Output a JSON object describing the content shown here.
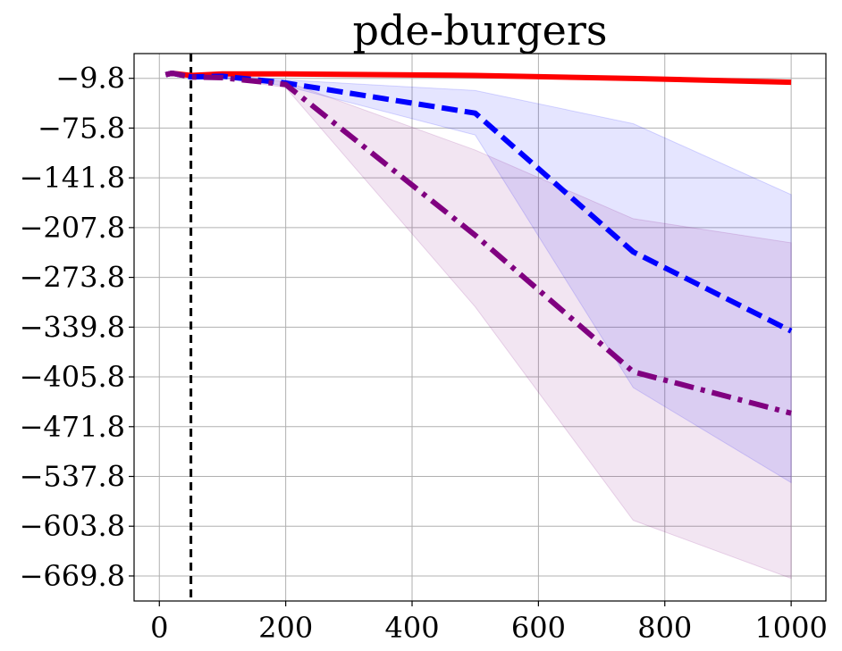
{
  "chart_data": {
    "type": "line",
    "title": "pde-burgers",
    "xlabel": "",
    "ylabel": "",
    "xlim": [
      -40,
      1055
    ],
    "ylim": [
      -703,
      23
    ],
    "x_ticks": [
      0,
      200,
      400,
      600,
      800,
      1000
    ],
    "x_tick_labels": [
      "0",
      "200",
      "400",
      "600",
      "800",
      "1000"
    ],
    "y_ticks": [
      -9.8,
      -75.8,
      -141.8,
      -207.8,
      -273.8,
      -339.8,
      -405.8,
      -471.8,
      -537.8,
      -603.8,
      -669.8
    ],
    "y_tick_labels": [
      "−9.8",
      "−75.8",
      "−141.8",
      "−207.8",
      "−273.8",
      "−339.8",
      "−405.8",
      "−471.8",
      "−537.8",
      "−603.8",
      "−669.8"
    ],
    "grid": true,
    "vline": {
      "x": 50,
      "color": "#000000",
      "style": "dashed"
    },
    "series": [
      {
        "color": "#ff0000",
        "style": "solid",
        "x": [
          10,
          20,
          50,
          100,
          200,
          500,
          750,
          1000
        ],
        "y": [
          -5,
          -3,
          -6,
          -4,
          -4,
          -6,
          -10,
          -15
        ],
        "band_lower": [
          -5,
          -3,
          -6,
          -4,
          -4,
          -6,
          -10,
          -15
        ],
        "band_upper": [
          -5,
          -3,
          -6,
          -4,
          -4,
          -6,
          -10,
          -15
        ]
      },
      {
        "color": "#0000ff",
        "style": "dashed",
        "x": [
          10,
          20,
          50,
          100,
          200,
          500,
          750,
          1000
        ],
        "y": [
          -5,
          -3,
          -8,
          -7,
          -16,
          -56,
          -240,
          -345
        ],
        "band_lower": [
          -5,
          -3,
          -8,
          -9,
          -20,
          -85,
          -420,
          -546
        ],
        "band_upper": [
          -5,
          -3,
          -8,
          -5,
          -12,
          -26,
          -70,
          -164
        ]
      },
      {
        "color": "#800080",
        "style": "dashdot",
        "x": [
          10,
          20,
          50,
          100,
          200,
          500,
          750,
          1000
        ],
        "y": [
          -5,
          -3,
          -8,
          -9,
          -18,
          -218,
          -399,
          -454
        ],
        "band_lower": [
          -5,
          -3,
          -8,
          -10,
          -22,
          -313,
          -596,
          -673
        ],
        "band_upper": [
          -5,
          -3,
          -8,
          -8,
          -14,
          -105,
          -196,
          -228
        ]
      }
    ]
  }
}
